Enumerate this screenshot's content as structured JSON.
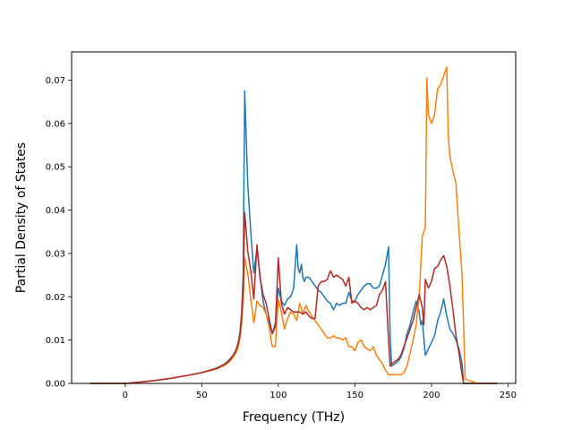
{
  "chart_data": {
    "type": "line",
    "title": "",
    "xlabel": "Frequency (THz)",
    "ylabel": "Partial Density of States",
    "xlim": [
      -35,
      255
    ],
    "ylim": [
      0,
      0.0765
    ],
    "xticks": [
      0,
      50,
      100,
      150,
      200,
      250
    ],
    "xtick_labels": [
      "0",
      "50",
      "100",
      "150",
      "200",
      "250"
    ],
    "yticks": [
      0,
      0.01,
      0.02,
      0.03,
      0.04,
      0.05,
      0.06,
      0.07
    ],
    "ytick_labels": [
      "0.00",
      "0.01",
      "0.02",
      "0.03",
      "0.04",
      "0.05",
      "0.06",
      "0.07"
    ],
    "grid": false,
    "legend": "none",
    "series": [
      {
        "color": "#1f77b4",
        "x": [
          -23,
          -10,
          0,
          10,
          20,
          30,
          40,
          50,
          55,
          60,
          65,
          68,
          70,
          72,
          73,
          74,
          75,
          76,
          77,
          78,
          80,
          82,
          84,
          86,
          88,
          90,
          92,
          94,
          96,
          98,
          100,
          102,
          104,
          106,
          108,
          110,
          112,
          113,
          114,
          115,
          116,
          117,
          118,
          120,
          122,
          124,
          126,
          128,
          130,
          132,
          134,
          136,
          138,
          140,
          142,
          144,
          146,
          148,
          150,
          152,
          154,
          156,
          158,
          160,
          162,
          164,
          166,
          168,
          170,
          172,
          173,
          174,
          176,
          178,
          180,
          182,
          184,
          186,
          188,
          190,
          192,
          193,
          194,
          195,
          196,
          198,
          200,
          202,
          204,
          206,
          208,
          210,
          212,
          214,
          216,
          218,
          220,
          221,
          222,
          230,
          243
        ],
        "y": [
          0,
          0,
          0,
          0.0003,
          0.0007,
          0.0012,
          0.0018,
          0.0025,
          0.003,
          0.0036,
          0.0045,
          0.0055,
          0.0063,
          0.0075,
          0.0085,
          0.0098,
          0.012,
          0.016,
          0.025,
          0.0675,
          0.046,
          0.035,
          0.0255,
          0.031,
          0.025,
          0.019,
          0.016,
          0.014,
          0.0115,
          0.014,
          0.022,
          0.019,
          0.018,
          0.0195,
          0.02,
          0.022,
          0.032,
          0.0265,
          0.0255,
          0.0275,
          0.0245,
          0.0235,
          0.0245,
          0.0245,
          0.0235,
          0.0225,
          0.0215,
          0.021,
          0.02,
          0.019,
          0.0185,
          0.017,
          0.0185,
          0.018,
          0.0185,
          0.0185,
          0.021,
          0.019,
          0.019,
          0.0205,
          0.0215,
          0.0225,
          0.023,
          0.023,
          0.022,
          0.022,
          0.0225,
          0.025,
          0.0275,
          0.0315,
          0.0105,
          0.004,
          0.0045,
          0.005,
          0.006,
          0.008,
          0.0115,
          0.0135,
          0.0165,
          0.019,
          0.0165,
          0.0135,
          0.0145,
          0.0105,
          0.0065,
          0.008,
          0.0095,
          0.011,
          0.0145,
          0.0165,
          0.0195,
          0.0155,
          0.0125,
          0.0115,
          0.01,
          0.008,
          0.0045,
          0,
          0,
          0,
          0
        ]
      },
      {
        "color": "#ff7f0e",
        "x": [
          -23,
          -10,
          0,
          10,
          20,
          30,
          40,
          50,
          55,
          60,
          65,
          68,
          70,
          72,
          73,
          74,
          75,
          76,
          77,
          78,
          80,
          82,
          84,
          86,
          88,
          90,
          92,
          94,
          96,
          98,
          100,
          102,
          104,
          106,
          108,
          110,
          112,
          114,
          116,
          118,
          120,
          122,
          124,
          126,
          128,
          130,
          132,
          134,
          136,
          138,
          140,
          142,
          144,
          146,
          148,
          150,
          152,
          154,
          156,
          158,
          160,
          162,
          164,
          166,
          168,
          170,
          172,
          173,
          174,
          176,
          178,
          180,
          182,
          184,
          186,
          188,
          190,
          192,
          194,
          196,
          197,
          198,
          200,
          202,
          204,
          206,
          208,
          210,
          211,
          212,
          214,
          216,
          218,
          220,
          221,
          222,
          230,
          243
        ],
        "y": [
          0,
          0,
          0,
          0.0003,
          0.0007,
          0.0012,
          0.0018,
          0.0025,
          0.0029,
          0.0034,
          0.0042,
          0.005,
          0.0058,
          0.0068,
          0.0076,
          0.0086,
          0.0105,
          0.0135,
          0.0185,
          0.029,
          0.0255,
          0.0195,
          0.014,
          0.019,
          0.018,
          0.0175,
          0.016,
          0.013,
          0.0085,
          0.0085,
          0.0195,
          0.0165,
          0.0125,
          0.015,
          0.0165,
          0.016,
          0.0145,
          0.0185,
          0.016,
          0.018,
          0.0165,
          0.0155,
          0.0145,
          0.0135,
          0.0125,
          0.0115,
          0.0105,
          0.0105,
          0.011,
          0.0105,
          0.0105,
          0.01,
          0.0105,
          0.0085,
          0.0085,
          0.0075,
          0.0095,
          0.01,
          0.0085,
          0.008,
          0.0075,
          0.0085,
          0.0065,
          0.0055,
          0.0045,
          0.003,
          0.002,
          0.002,
          0.002,
          0.002,
          0.002,
          0.002,
          0.0025,
          0.004,
          0.007,
          0.01,
          0.0135,
          0.02,
          0.034,
          0.036,
          0.0705,
          0.062,
          0.06,
          0.062,
          0.068,
          0.069,
          0.071,
          0.073,
          0.057,
          0.0525,
          0.049,
          0.046,
          0.035,
          0.025,
          0.0135,
          0.001,
          0,
          0
        ]
      },
      {
        "color": "#b22a26",
        "x": [
          -23,
          -10,
          0,
          10,
          20,
          30,
          40,
          50,
          55,
          60,
          65,
          68,
          70,
          72,
          73,
          74,
          75,
          76,
          77,
          78,
          80,
          82,
          84,
          86,
          88,
          90,
          92,
          94,
          96,
          98,
          100,
          102,
          104,
          106,
          108,
          110,
          112,
          114,
          116,
          118,
          120,
          122,
          124,
          126,
          128,
          130,
          132,
          134,
          136,
          138,
          140,
          142,
          144,
          146,
          148,
          150,
          152,
          154,
          156,
          158,
          160,
          162,
          164,
          166,
          168,
          170,
          172,
          173,
          174,
          176,
          178,
          180,
          182,
          184,
          186,
          188,
          190,
          192,
          194,
          195,
          196,
          198,
          200,
          202,
          204,
          206,
          208,
          210,
          212,
          214,
          216,
          218,
          220,
          221,
          222,
          230,
          243
        ],
        "y": [
          0,
          0,
          0,
          0.0003,
          0.0007,
          0.0012,
          0.0018,
          0.0025,
          0.003,
          0.0035,
          0.0044,
          0.0053,
          0.0062,
          0.0073,
          0.0083,
          0.0095,
          0.0115,
          0.0155,
          0.022,
          0.0395,
          0.0305,
          0.026,
          0.0195,
          0.032,
          0.0245,
          0.0205,
          0.0185,
          0.015,
          0.0115,
          0.013,
          0.029,
          0.0185,
          0.016,
          0.0175,
          0.017,
          0.0165,
          0.0165,
          0.0165,
          0.016,
          0.0165,
          0.0155,
          0.015,
          0.015,
          0.0225,
          0.0235,
          0.0235,
          0.024,
          0.026,
          0.0245,
          0.025,
          0.0245,
          0.024,
          0.0225,
          0.0245,
          0.0185,
          0.019,
          0.0185,
          0.0175,
          0.017,
          0.0175,
          0.017,
          0.0175,
          0.018,
          0.0205,
          0.0215,
          0.0235,
          0.01,
          0.004,
          0.0045,
          0.005,
          0.0055,
          0.0065,
          0.0085,
          0.0105,
          0.0125,
          0.0145,
          0.0175,
          0.0205,
          0.0175,
          0.0135,
          0.024,
          0.022,
          0.0235,
          0.0265,
          0.027,
          0.0285,
          0.0295,
          0.027,
          0.0225,
          0.017,
          0.011,
          0.007,
          0.002,
          0,
          0,
          0,
          0
        ]
      }
    ]
  }
}
